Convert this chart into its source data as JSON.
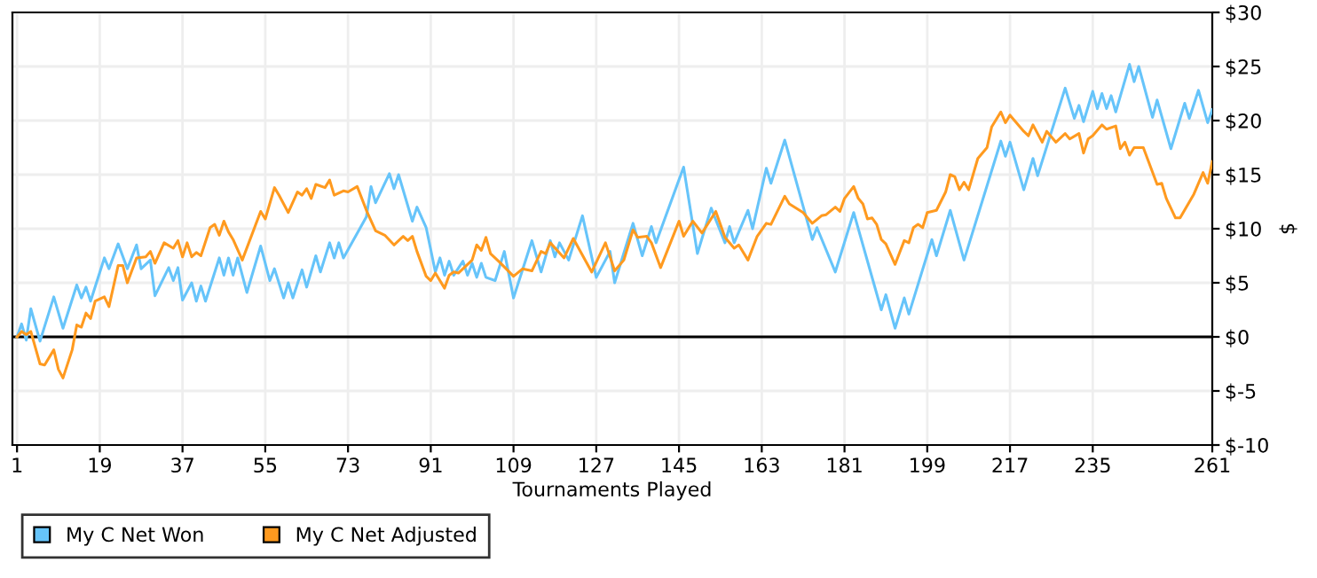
{
  "chart_data": {
    "type": "line",
    "xlabel": "Tournaments Played",
    "ylabel": "$",
    "xlim": [
      0,
      261
    ],
    "xticks": [
      1,
      19,
      37,
      55,
      73,
      91,
      109,
      127,
      145,
      163,
      181,
      199,
      217,
      235,
      261
    ],
    "ylim": [
      -10,
      30
    ],
    "yticks": [
      {
        "value": -10,
        "label": "$-10"
      },
      {
        "value": -5,
        "label": "$-5"
      },
      {
        "value": 0,
        "label": "$0"
      },
      {
        "value": 5,
        "label": "$5"
      },
      {
        "value": 10,
        "label": "$10"
      },
      {
        "value": 15,
        "label": "$15"
      },
      {
        "value": 20,
        "label": "$20"
      },
      {
        "value": 25,
        "label": "$25"
      },
      {
        "value": 30,
        "label": "$30"
      }
    ],
    "grid": true,
    "legend": "bottom",
    "marker": "none",
    "line_style": "solid",
    "ref_lines": [
      {
        "axis": "y",
        "value": 0,
        "label": null,
        "color": "#000000"
      }
    ],
    "series": [
      {
        "name": "My C Net Won",
        "color": "#66c4fa",
        "x": [
          1,
          2,
          3,
          4,
          6,
          9,
          11,
          14,
          15,
          16,
          17,
          20,
          21,
          23,
          25,
          27,
          28,
          30,
          31,
          34,
          35,
          36,
          37,
          39,
          40,
          41,
          42,
          45,
          46,
          47,
          48,
          49,
          51,
          54,
          56,
          57,
          59,
          60,
          61,
          63,
          64,
          66,
          67,
          69,
          70,
          71,
          72,
          77,
          78,
          79,
          82,
          83,
          84,
          87,
          88,
          90,
          92,
          93,
          94,
          95,
          96,
          98,
          99,
          100,
          101,
          102,
          103,
          105,
          107,
          109,
          113,
          115,
          117,
          118,
          119,
          121,
          124,
          127,
          130,
          131,
          135,
          137,
          139,
          140,
          146,
          149,
          152,
          155,
          156,
          157,
          160,
          161,
          164,
          165,
          168,
          174,
          175,
          179,
          183,
          189,
          190,
          192,
          194,
          195,
          200,
          201,
          204,
          207,
          215,
          216,
          217,
          220,
          222,
          223,
          229,
          231,
          232,
          233,
          235,
          236,
          237,
          238,
          239,
          240,
          243,
          244,
          245,
          248,
          249,
          252,
          255,
          256,
          258,
          260,
          261
        ],
        "values": [
          0,
          1.2,
          -0.3,
          2.6,
          -0.4,
          3.7,
          0.8,
          4.8,
          3.6,
          4.6,
          3.3,
          7.3,
          6.3,
          8.6,
          6.3,
          8.5,
          6.3,
          7.1,
          3.8,
          6.4,
          5.2,
          6.4,
          3.4,
          5,
          3.3,
          4.7,
          3.3,
          7.3,
          5.7,
          7.3,
          5.7,
          7.3,
          4.1,
          8.4,
          5.2,
          6.3,
          3.6,
          5,
          3.6,
          6.2,
          4.6,
          7.5,
          6,
          8.7,
          7.3,
          8.7,
          7.3,
          11.1,
          13.9,
          12.4,
          15.1,
          13.7,
          15,
          10.7,
          12,
          10.1,
          6,
          7.3,
          5.7,
          7,
          5.7,
          7,
          5.7,
          6.8,
          5.5,
          6.8,
          5.5,
          5.2,
          7.9,
          3.6,
          8.9,
          6,
          8.9,
          7.4,
          8.7,
          7.1,
          11.2,
          5.5,
          7.9,
          5,
          10.5,
          7.5,
          10.2,
          8.7,
          15.7,
          7.7,
          11.9,
          8.7,
          10.2,
          8.7,
          11.7,
          10,
          15.6,
          14.2,
          18.2,
          9,
          10.1,
          6,
          11.5,
          2.5,
          3.9,
          0.8,
          3.6,
          2.1,
          9,
          7.5,
          11.7,
          7.1,
          18.1,
          16.7,
          18,
          13.6,
          16.5,
          14.9,
          23,
          20.2,
          21.4,
          19.9,
          22.7,
          21.1,
          22.5,
          21.1,
          22.3,
          20.8,
          25.2,
          23.6,
          25,
          20.3,
          21.9,
          17.4,
          21.6,
          20.2,
          22.8,
          19.8,
          21
        ]
      },
      {
        "name": "My C Net Adjusted",
        "color": "#ff9a1f",
        "x": [
          1,
          2,
          3,
          4,
          6,
          7,
          9,
          10,
          11,
          13,
          14,
          15,
          16,
          17,
          18,
          20,
          21,
          23,
          24,
          25,
          27,
          29,
          30,
          31,
          33,
          35,
          36,
          37,
          38,
          39,
          40,
          41,
          43,
          44,
          45,
          46,
          47,
          48,
          50,
          54,
          55,
          57,
          58,
          60,
          62,
          63,
          64,
          65,
          66,
          68,
          69,
          70,
          72,
          73,
          75,
          77,
          79,
          81,
          83,
          85,
          86,
          87,
          88,
          90,
          91,
          92,
          94,
          95,
          96,
          97,
          100,
          101,
          102,
          103,
          104,
          106,
          109,
          111,
          113,
          115,
          116,
          117,
          120,
          122,
          126,
          129,
          131,
          133,
          135,
          136,
          138,
          139,
          141,
          145,
          146,
          148,
          150,
          153,
          155,
          157,
          158,
          160,
          162,
          164,
          165,
          168,
          169,
          172,
          174,
          176,
          177,
          179,
          180,
          181,
          183,
          184,
          185,
          186,
          187,
          188,
          189,
          190,
          192,
          194,
          195,
          196,
          197,
          198,
          199,
          201,
          203,
          204,
          205,
          206,
          207,
          208,
          210,
          212,
          213,
          215,
          216,
          217,
          220,
          221,
          222,
          224,
          225,
          227,
          229,
          230,
          232,
          233,
          234,
          235,
          237,
          238,
          240,
          241,
          242,
          243,
          244,
          246,
          249,
          250,
          251,
          253,
          254,
          257,
          259,
          260,
          261
        ],
        "values": [
          0,
          0.5,
          0.2,
          0.5,
          -2.5,
          -2.6,
          -1.2,
          -3,
          -3.8,
          -1.2,
          1.1,
          0.9,
          2.2,
          1.7,
          3.3,
          3.7,
          2.8,
          6.6,
          6.6,
          5,
          7.3,
          7.4,
          7.9,
          6.8,
          8.7,
          8.2,
          8.9,
          7.4,
          8.7,
          7.4,
          7.8,
          7.5,
          10.1,
          10.4,
          9.4,
          10.7,
          9.7,
          9,
          7.1,
          11.6,
          10.9,
          13.8,
          13.1,
          11.5,
          13.4,
          13.1,
          13.7,
          12.8,
          14.1,
          13.8,
          14.5,
          13.1,
          13.5,
          13.4,
          13.9,
          11.7,
          9.8,
          9.4,
          8.5,
          9.3,
          8.9,
          9.3,
          7.9,
          5.6,
          5.2,
          5.9,
          4.5,
          5.7,
          6,
          5.9,
          7.1,
          8.5,
          8,
          9.2,
          7.7,
          6.9,
          5.6,
          6.3,
          6.1,
          7.9,
          7.7,
          8.7,
          7.3,
          9.1,
          6,
          8.7,
          6.1,
          7.1,
          9.9,
          9.2,
          9.3,
          8.7,
          6.4,
          10.7,
          9.3,
          10.7,
          9.6,
          11.6,
          9.2,
          8.2,
          8.5,
          7.1,
          9.3,
          10.5,
          10.4,
          13,
          12.3,
          11.5,
          10.5,
          11.2,
          11.3,
          12,
          11.6,
          12.8,
          13.9,
          12.8,
          12.3,
          10.9,
          11,
          10.4,
          9,
          8.6,
          6.7,
          8.9,
          8.7,
          10.1,
          10.4,
          10.1,
          11.5,
          11.7,
          13.4,
          15,
          14.8,
          13.6,
          14.3,
          13.6,
          16.5,
          17.5,
          19.4,
          20.8,
          19.8,
          20.5,
          19,
          18.6,
          19.6,
          18,
          19,
          18,
          18.8,
          18.3,
          18.8,
          17,
          18.3,
          18.6,
          19.6,
          19.2,
          19.5,
          17.4,
          18,
          16.8,
          17.5,
          17.5,
          14.1,
          14.2,
          12.8,
          11,
          11,
          13.2,
          15.2,
          14.2,
          16.2
        ]
      }
    ]
  }
}
